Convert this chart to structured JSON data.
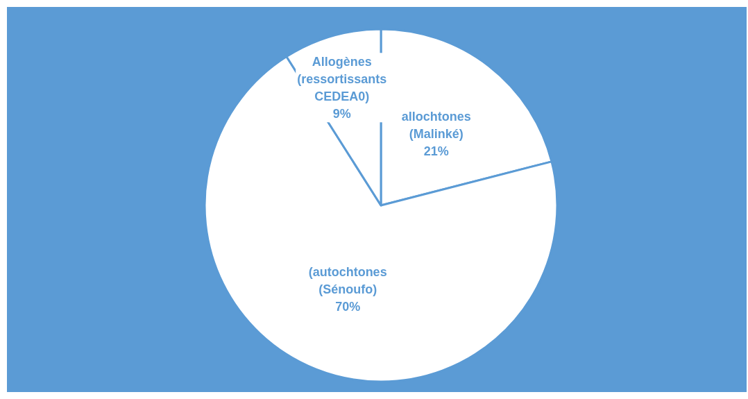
{
  "chart_data": {
    "type": "pie",
    "categories": [
      "allochtones (Malinké)",
      "(autochtones (Sénoufo)",
      "Allogènes (ressortissants CEDEA0)"
    ],
    "values": [
      21,
      70,
      9
    ],
    "colors": [
      "#ffffff",
      "#ffffff",
      "#ffffff"
    ],
    "value_labels": [
      "21%",
      "70%",
      "9%"
    ],
    "legend": false
  }
}
